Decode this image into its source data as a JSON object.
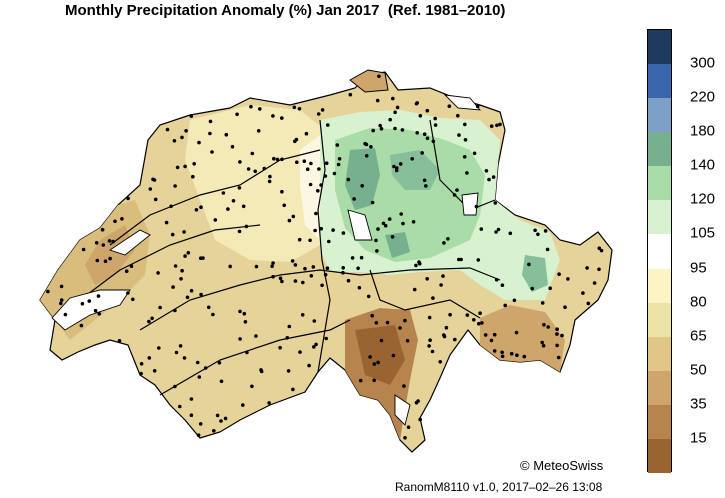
{
  "title": "Monthly Precipitation Anomaly (%) Jan 2017  (Ref. 1981–2010)",
  "legend": {
    "bins": [
      {
        "label": "300",
        "color": "#1f3a5f"
      },
      {
        "label": "220",
        "color": "#3a66ad"
      },
      {
        "label": "180",
        "color": "#7ea0c8"
      },
      {
        "label": "140",
        "color": "#76b08f"
      },
      {
        "label": "120",
        "color": "#a9dca6"
      },
      {
        "label": "105",
        "color": "#d8f2d0"
      },
      {
        "label": "95",
        "color": "#ffffff"
      },
      {
        "label": "80",
        "color": "#fbf5c5"
      },
      {
        "label": "65",
        "color": "#eee3a6"
      },
      {
        "label": "50",
        "color": "#e0c787"
      },
      {
        "label": "35",
        "color": "#cea56a"
      },
      {
        "label": "15",
        "color": "#b7844e"
      },
      {
        "label": "",
        "color": "#9a6432"
      }
    ]
  },
  "copyright": "© MeteoSwiss",
  "footer": "RanomM8110 v1.0, 2017–02–26 13:08"
}
